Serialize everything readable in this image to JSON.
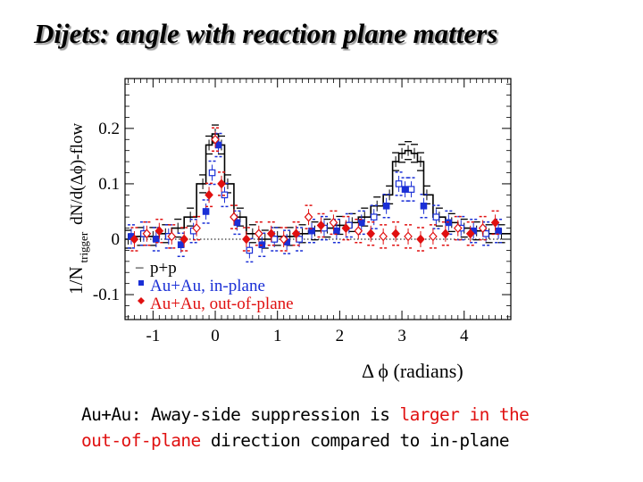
{
  "title": "Dijets: angle with reaction plane matters",
  "caption": {
    "part1": "Au+Au: Away-side suppression is ",
    "highlight1": "larger in the",
    "highlight2": "out-of-plane",
    "part2": " direction compared to in-plane"
  },
  "colors": {
    "pp": "#000000",
    "in_plane": "#1a2fd6",
    "out_of_plane": "#e01010",
    "caption_highlight": "#e01010"
  },
  "chart_data": {
    "type": "line",
    "xlabel": "Δ ϕ (radians)",
    "ylabel_main": "1/N",
    "ylabel_sub": "trigger",
    "ylabel_tail": "dN/d(Δϕ)-flow",
    "xlim": [
      -1.45,
      4.75
    ],
    "ylim": [
      -0.145,
      0.29
    ],
    "xticks": [
      -1,
      0,
      1,
      2,
      3,
      4
    ],
    "yticks": [
      -0.1,
      0,
      0.1,
      0.2
    ],
    "xtick_labels": [
      "-1",
      "0",
      "1",
      "2",
      "3",
      "4"
    ],
    "ytick_labels": [
      "-0.1",
      "0",
      "0.1",
      "0.2"
    ],
    "zero_line": "dotted",
    "legend_position": "bottom-left",
    "series": [
      {
        "name": "p+p",
        "style": "step",
        "x": [
          -1.4,
          -1.2,
          -1.0,
          -0.8,
          -0.6,
          -0.4,
          -0.2,
          -0.1,
          0.0,
          0.1,
          0.2,
          0.4,
          0.6,
          0.8,
          1.0,
          1.2,
          1.4,
          1.6,
          1.8,
          2.0,
          2.2,
          2.4,
          2.6,
          2.8,
          2.9,
          3.0,
          3.1,
          3.2,
          3.3,
          3.4,
          3.6,
          3.8,
          4.0,
          4.2,
          4.4,
          4.6
        ],
        "y": [
          0.0,
          0.005,
          0.005,
          0.01,
          0.02,
          0.04,
          0.1,
          0.17,
          0.19,
          0.17,
          0.1,
          0.04,
          0.01,
          0.0,
          0.005,
          0.005,
          0.01,
          0.015,
          0.02,
          0.025,
          0.03,
          0.04,
          0.06,
          0.08,
          0.14,
          0.155,
          0.16,
          0.155,
          0.14,
          0.08,
          0.04,
          0.03,
          0.02,
          0.015,
          0.01,
          0.01
        ]
      },
      {
        "name": "Au+Au, in-plane",
        "marker": "square",
        "x": [
          -1.35,
          -1.15,
          -0.95,
          -0.75,
          -0.55,
          -0.35,
          -0.15,
          -0.05,
          0.05,
          0.15,
          0.35,
          0.55,
          0.75,
          0.95,
          1.15,
          1.35,
          1.55,
          1.75,
          1.95,
          2.15,
          2.35,
          2.55,
          2.75,
          2.95,
          3.05,
          3.15,
          3.35,
          3.55,
          3.75,
          3.95,
          4.15,
          4.35,
          4.55
        ],
        "y": [
          0.005,
          0.01,
          0.0,
          0.005,
          -0.01,
          0.015,
          0.05,
          0.12,
          0.17,
          0.08,
          0.03,
          -0.02,
          -0.01,
          0.0,
          -0.005,
          0.0,
          0.015,
          0.02,
          0.015,
          0.025,
          0.03,
          0.04,
          0.06,
          0.1,
          0.09,
          0.09,
          0.06,
          0.04,
          0.03,
          0.02,
          0.015,
          0.01,
          0.015
        ]
      },
      {
        "name": "Au+Au, out-of-plane",
        "marker": "diamond",
        "x": [
          -1.3,
          -1.1,
          -0.9,
          -0.7,
          -0.5,
          -0.3,
          -0.1,
          0.0,
          0.1,
          0.3,
          0.5,
          0.7,
          0.9,
          1.1,
          1.3,
          1.5,
          1.7,
          1.9,
          2.1,
          2.3,
          2.5,
          2.7,
          2.9,
          3.1,
          3.3,
          3.5,
          3.7,
          3.9,
          4.1,
          4.3,
          4.5
        ],
        "y": [
          0.0,
          0.01,
          0.015,
          0.005,
          0.0,
          0.02,
          0.08,
          0.18,
          0.1,
          0.04,
          0.0,
          0.01,
          0.01,
          0.0,
          0.01,
          0.04,
          0.025,
          0.03,
          0.02,
          0.015,
          0.01,
          0.005,
          0.01,
          0.005,
          0.0,
          0.005,
          0.01,
          0.02,
          0.01,
          0.02,
          0.03
        ]
      }
    ]
  }
}
